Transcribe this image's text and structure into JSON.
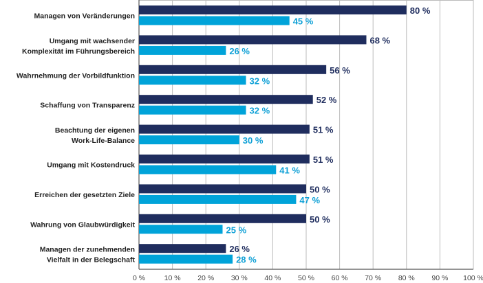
{
  "chart_data": {
    "type": "bar",
    "orientation": "horizontal",
    "categories": [
      [
        "Managen von Veränderungen"
      ],
      [
        "Umgang mit wachsender",
        "Komplexität im Führungsbereich"
      ],
      [
        "Wahrnehmung der Vorbildfunktion"
      ],
      [
        "Schaffung von Transparenz"
      ],
      [
        "Beachtung der eigenen",
        "Work-Life-Balance"
      ],
      [
        "Umgang mit Kostendruck"
      ],
      [
        "Erreichen der gesetzten Ziele"
      ],
      [
        "Wahrung von Glaubwürdigkeit"
      ],
      [
        "Managen der zunehmenden",
        "Vielfalt in der Belegschaft"
      ]
    ],
    "series": [
      {
        "values": [
          80,
          68,
          56,
          52,
          51,
          51,
          50,
          50,
          26
        ],
        "color": "#1f2d5e"
      },
      {
        "values": [
          45,
          26,
          32,
          32,
          30,
          41,
          47,
          25,
          28
        ],
        "color": "#00a3d9"
      }
    ],
    "value_suffix": " %",
    "xlim": [
      0,
      100
    ],
    "xticks": [
      "0 %",
      "10 %",
      "20 %",
      "30 %",
      "40 %",
      "50 %",
      "60 %",
      "70 %",
      "80 %",
      "90 %",
      "100 %"
    ],
    "grid": true,
    "legend": "none"
  }
}
